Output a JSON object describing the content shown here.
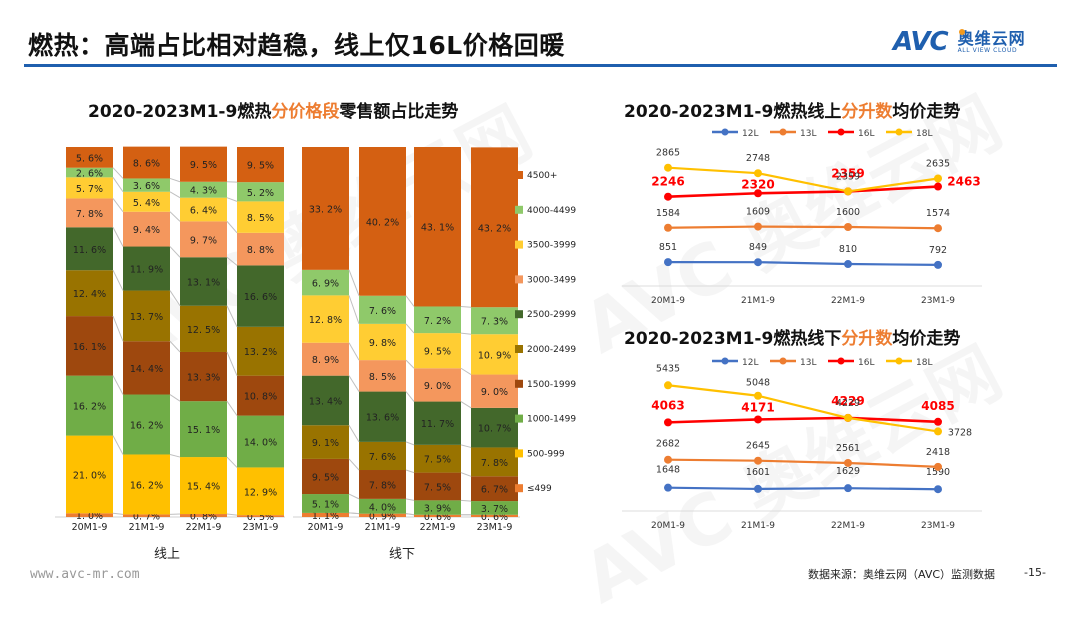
{
  "page": {
    "title": "燃热：高端占比相对趋稳，线上仅16L价格回暖",
    "logo_mark": "AVC",
    "logo_cn": "奥维云网",
    "logo_en": "ALL VIEW CLOUD",
    "footer_url": "www.avc-mr.com",
    "footer_source": "数据来源：奥维云网（AVC）监测数据",
    "page_number": "-15-",
    "watermark": "AVC 奥维云网"
  },
  "chart_data": [
    {
      "type": "bar",
      "stacked": true,
      "title_parts": [
        "2020-2023M1-9燃热",
        "分价格段",
        "零售额占比走势"
      ],
      "groups": [
        "线上",
        "线下"
      ],
      "categories": [
        "20M1-9",
        "21M1-9",
        "22M1-9",
        "23M1-9"
      ],
      "legend_position": "right",
      "series": [
        {
          "name": "≤499",
          "color": "#ed7d31",
          "online": [
            1.0,
            0.7,
            0.8,
            0.5
          ],
          "offline": [
            1.1,
            0.9,
            0.6,
            0.6
          ]
        },
        {
          "name": "500-999",
          "color": "#ffc000",
          "online": [
            21.0,
            16.2,
            15.4,
            12.9
          ],
          "offline": [
            0,
            0,
            0,
            0
          ]
        },
        {
          "name": "1000-1499",
          "color": "#70ad47",
          "online": [
            16.2,
            16.2,
            15.1,
            14.0
          ],
          "offline": [
            5.1,
            4.0,
            3.9,
            3.7
          ]
        },
        {
          "name": "1500-1999",
          "color": "#9e480e",
          "online": [
            16.1,
            14.4,
            13.3,
            10.8
          ],
          "offline": [
            9.5,
            7.8,
            7.5,
            6.7
          ]
        },
        {
          "name": "2000-2499",
          "color": "#997300",
          "online": [
            12.4,
            13.7,
            12.5,
            13.2
          ],
          "offline": [
            9.1,
            7.6,
            7.5,
            7.8
          ]
        },
        {
          "name": "2500-2999",
          "color": "#43682b",
          "online": [
            11.6,
            11.9,
            13.1,
            16.6
          ],
          "offline": [
            13.4,
            13.6,
            11.7,
            10.7
          ]
        },
        {
          "name": "3000-3499",
          "color": "#f4975d",
          "online": [
            7.8,
            9.4,
            9.7,
            8.8
          ],
          "offline": [
            8.9,
            8.5,
            9.0,
            9.0
          ]
        },
        {
          "name": "3500-3999",
          "color": "#ffcd33",
          "online": [
            5.7,
            5.4,
            6.4,
            8.5
          ],
          "offline": [
            12.8,
            9.8,
            9.5,
            10.9
          ]
        },
        {
          "name": "4000-4499",
          "color": "#8fc96a",
          "online": [
            2.6,
            3.6,
            4.3,
            5.2
          ],
          "offline": [
            6.9,
            7.6,
            7.2,
            7.3
          ]
        },
        {
          "name": "4500+",
          "color": "#d46012",
          "online": [
            5.6,
            8.6,
            9.5,
            9.5
          ],
          "offline": [
            33.2,
            40.2,
            43.1,
            43.2
          ]
        }
      ],
      "ylim": [
        0,
        100
      ],
      "unit": "%"
    },
    {
      "type": "line",
      "title_parts": [
        "2020-2023M1-9燃热线上",
        "分升数",
        "均价走势"
      ],
      "x": [
        "20M1-9",
        "21M1-9",
        "22M1-9",
        "23M1-9"
      ],
      "legend_position": "top",
      "series": [
        {
          "name": "12L",
          "color": "#4472c4",
          "values": [
            851,
            849,
            810,
            792
          ]
        },
        {
          "name": "13L",
          "color": "#ed7d31",
          "values": [
            1584,
            1609,
            1600,
            1574
          ]
        },
        {
          "name": "16L",
          "color": "#ff0000",
          "values": [
            2246,
            2320,
            2359,
            2463
          ],
          "highlight": true
        },
        {
          "name": "18L",
          "color": "#ffc000",
          "values": [
            2865,
            2748,
            2359,
            2635
          ]
        }
      ],
      "ylim": [
        0,
        3200
      ]
    },
    {
      "type": "line",
      "title_parts": [
        "2020-2023M1-9燃热线下",
        "分升数",
        "均价走势"
      ],
      "x": [
        "20M1-9",
        "21M1-9",
        "22M1-9",
        "23M1-9"
      ],
      "legend_position": "top",
      "series": [
        {
          "name": "12L",
          "color": "#4472c4",
          "values": [
            1648,
            1601,
            1629,
            1590
          ]
        },
        {
          "name": "13L",
          "color": "#ed7d31",
          "values": [
            2682,
            2645,
            2561,
            2418
          ]
        },
        {
          "name": "16L",
          "color": "#ff0000",
          "values": [
            4063,
            4171,
            4229,
            4085
          ],
          "highlight": true
        },
        {
          "name": "18L",
          "color": "#ffc000",
          "values": [
            5435,
            5048,
            4229,
            3728
          ]
        }
      ],
      "ylim": [
        600,
        6000
      ]
    }
  ]
}
